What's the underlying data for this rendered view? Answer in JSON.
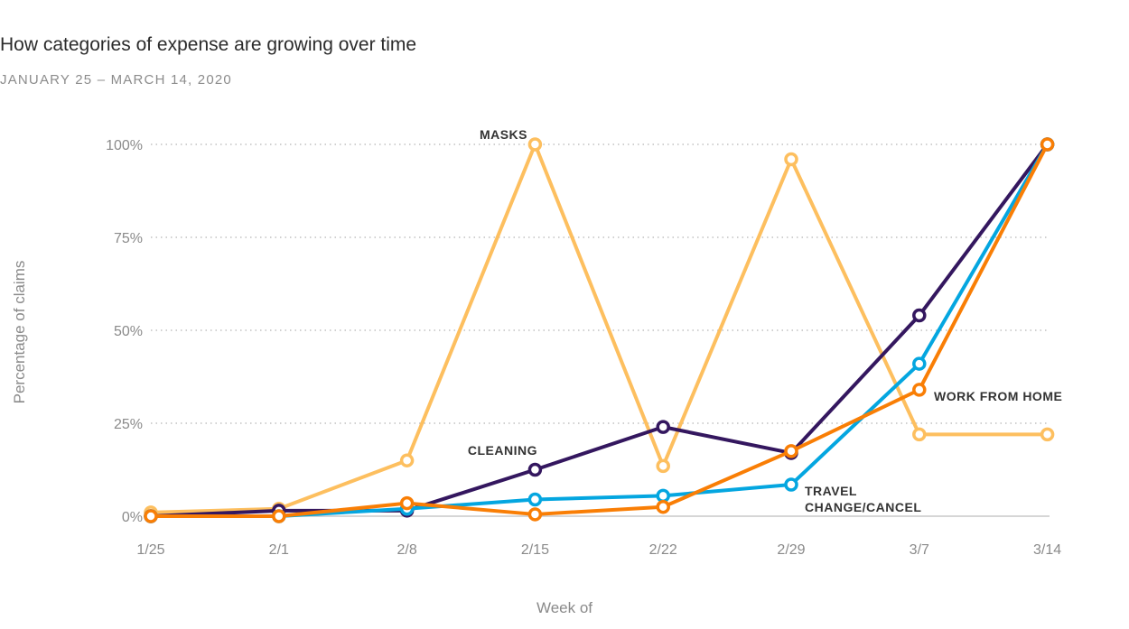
{
  "title": "How categories of expense are growing over time",
  "subtitle": "JANUARY 25 – MARCH 14, 2020",
  "chart_data": {
    "type": "line",
    "title": "How categories of expense are growing over time",
    "subtitle": "JANUARY 25 – MARCH 14, 2020",
    "xlabel": "Week of",
    "ylabel": "Percentage of claims",
    "categories": [
      "1/25",
      "2/1",
      "2/8",
      "2/15",
      "2/22",
      "2/29",
      "3/7",
      "3/14"
    ],
    "y_ticks": [
      "0%",
      "25%",
      "50%",
      "75%",
      "100%"
    ],
    "ylim": [
      0,
      100
    ],
    "grid": "horizontal dotted",
    "legend": "none (direct labels)",
    "series": [
      {
        "name": "MASKS",
        "color": "#FDBF5F",
        "values": [
          1,
          2,
          15,
          100,
          13.5,
          96,
          22,
          22
        ]
      },
      {
        "name": "CLEANING",
        "color": "#34175F",
        "values": [
          0,
          1.5,
          1.5,
          12.5,
          24,
          17,
          54,
          100
        ]
      },
      {
        "name": "TRAVEL CHANGE/CANCEL",
        "label_lines": [
          "TRAVEL",
          "CHANGE/CANCEL"
        ],
        "color": "#04A6E0",
        "values": [
          0,
          0,
          2,
          4.5,
          5.5,
          8.5,
          41,
          100
        ]
      },
      {
        "name": "WORK FROM HOME",
        "color": "#F97E05",
        "values": [
          0,
          0,
          3.5,
          0.5,
          2.5,
          17.5,
          34,
          100
        ]
      }
    ]
  }
}
